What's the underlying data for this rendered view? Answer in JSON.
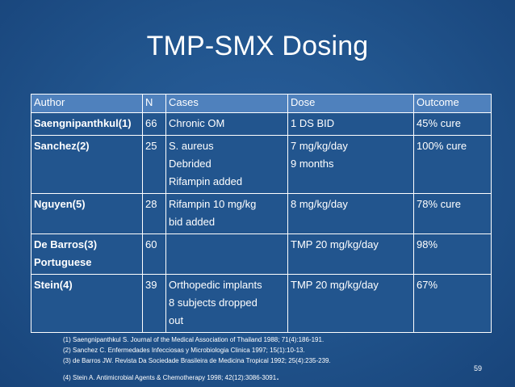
{
  "title": "TMP-SMX Dosing",
  "table": {
    "headers": [
      "Author",
      "N",
      "Cases",
      "Dose",
      "Outcome"
    ],
    "rows": [
      {
        "author": [
          "Saengnipanthkul(1)"
        ],
        "n": "66",
        "cases": [
          "Chronic OM"
        ],
        "dose": [
          "1 DS BID"
        ],
        "outcome": "45% cure"
      },
      {
        "author": [
          "Sanchez(2)"
        ],
        "n": "25",
        "cases": [
          "S. aureus",
          "Debrided",
          "Rifampin added"
        ],
        "dose": [
          "7 mg/kg/day",
          "9 months"
        ],
        "outcome": "100% cure"
      },
      {
        "author": [
          "Nguyen(5)"
        ],
        "n": "28",
        "cases": [
          "Rifampin 10 mg/kg",
          "bid added"
        ],
        "dose": [
          "8 mg/kg/day"
        ],
        "outcome": "78% cure"
      },
      {
        "author": [
          "De Barros(3)",
          "Portuguese"
        ],
        "n": "60",
        "cases": [],
        "dose": [
          "TMP 20 mg/kg/day"
        ],
        "outcome": "98%"
      },
      {
        "author": [
          "Stein(4)"
        ],
        "n": "39",
        "cases": [
          "Orthopedic implants",
          "8 subjects dropped",
          "out"
        ],
        "dose": [
          "TMP 20 mg/kg/day"
        ],
        "outcome": "67%"
      }
    ]
  },
  "references": [
    "(1)  Saengnipanthkul S. Journal of the Medical Association of Thailand 1988; 71(4):186-191.",
    "(2)  Sanchez C. Enfermedades Infecciosas y Microbiologia Clinica 1997; 15(1):10-13.",
    "(3)  de Barros JW. Revista Da Sociedade Brasileira de Medicina Tropical 1992; 25(4):235-239.",
    "(4)  Stein A. Antimicrobial Agents & Chemotherapy 1998; 42(12):3086-3091"
  ],
  "reference_trailing_mark": ".",
  "page_number": "59"
}
